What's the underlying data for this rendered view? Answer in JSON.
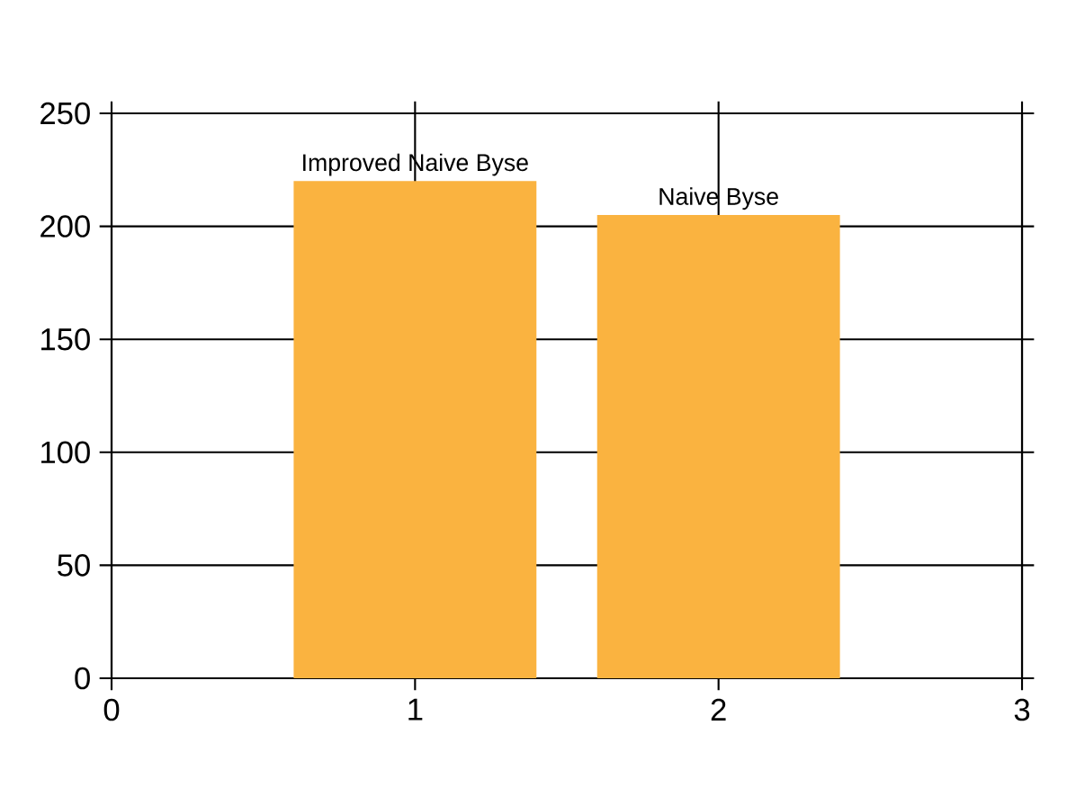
{
  "chart_data": {
    "type": "bar",
    "x": [
      1,
      2
    ],
    "values": [
      220,
      205
    ],
    "color": "#fab340",
    "xlim": [
      0,
      3
    ],
    "xticks": [
      0,
      1,
      2,
      3
    ],
    "ylim": [
      0,
      250
    ],
    "yticks": [
      0,
      50,
      100,
      150,
      200,
      250
    ],
    "grid": true,
    "annotations": [
      {
        "text": "Improved Naive Byse",
        "x": 1,
        "y": 220
      },
      {
        "text": "Naive Byse",
        "x": 2,
        "y": 205
      }
    ]
  }
}
